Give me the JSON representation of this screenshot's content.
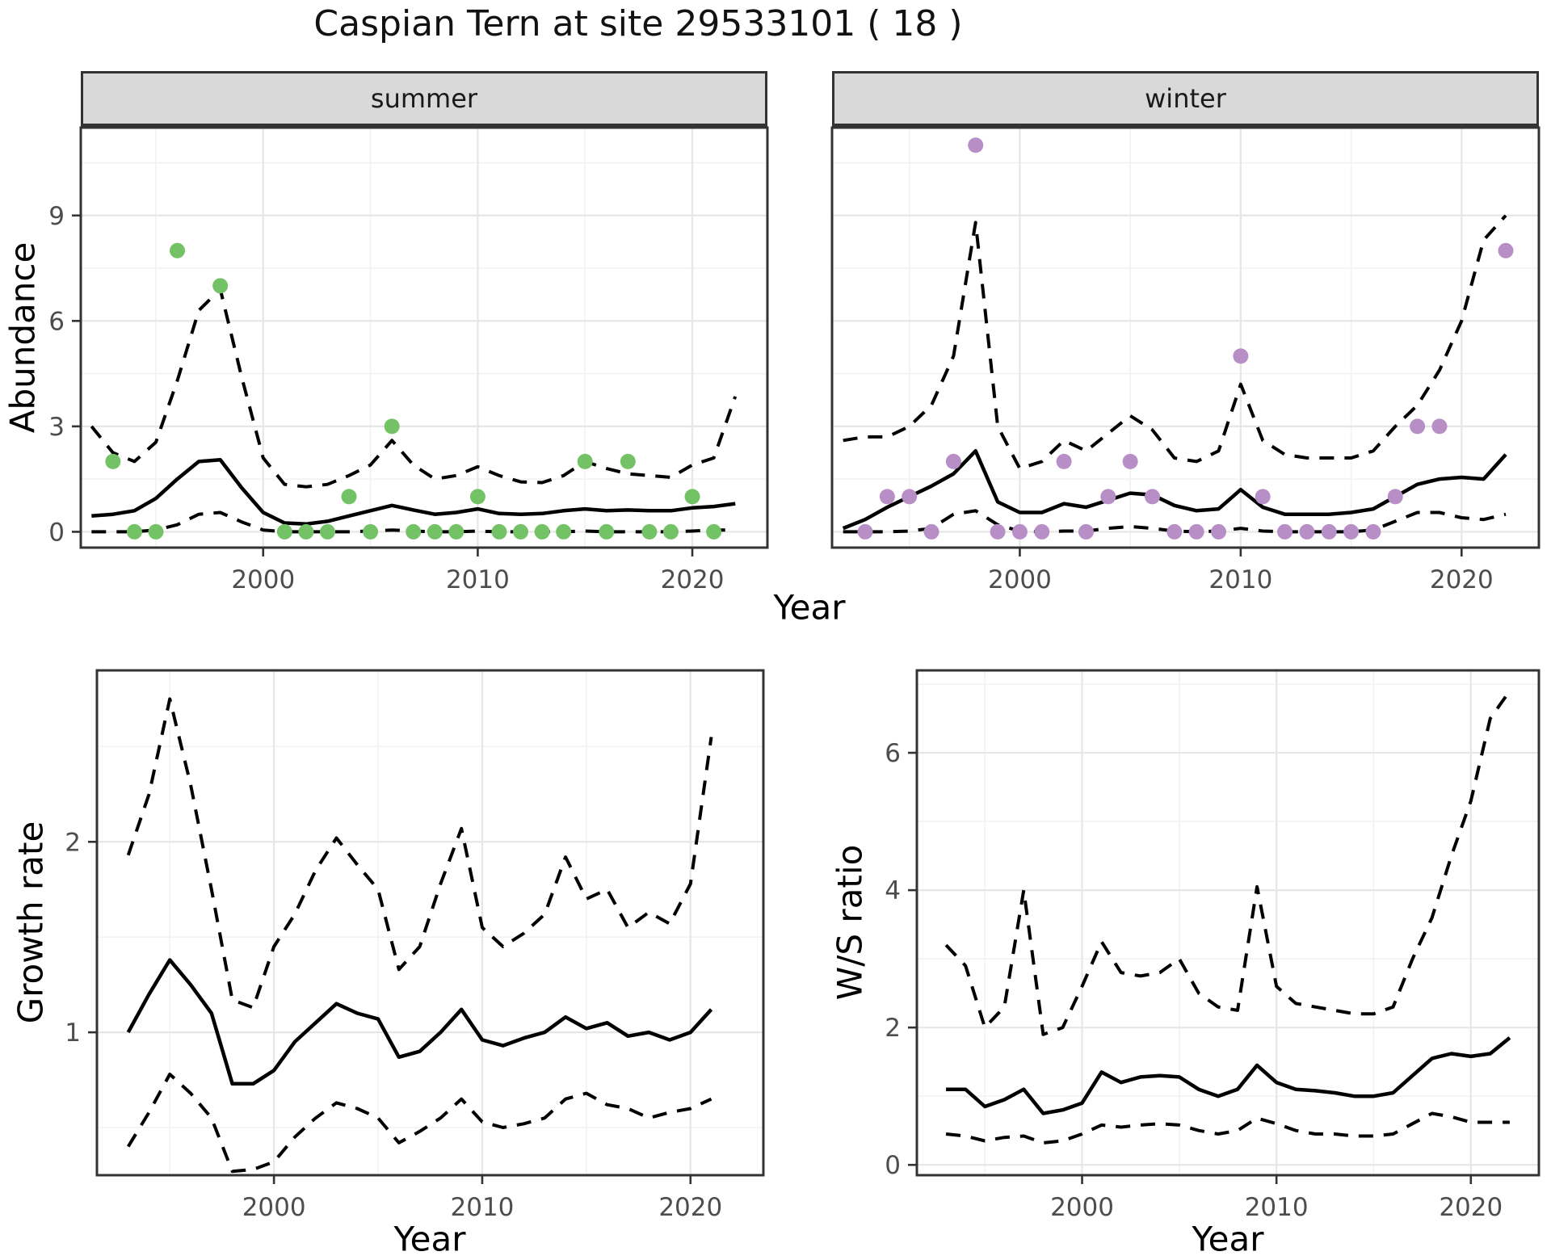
{
  "title": "Caspian Tern at site 29533101 ( 18 )",
  "facets": {
    "summer_label": "summer",
    "winter_label": "winter"
  },
  "axis_titles": {
    "abundance": "Abundance",
    "year_top": "Year",
    "growth": "Growth rate",
    "ws": "W/S ratio",
    "year_growth": "Year",
    "year_ws": "Year"
  },
  "colors": {
    "summer_point": "#74C266",
    "winter_point": "#B78FC6",
    "line": "#000000",
    "grid_major": "#E6E6E6",
    "grid_minor": "#F2F2F2",
    "strip_bg": "#D9D9D9",
    "panel_border": "#333333",
    "tick_color": "#333333",
    "tick_label": "#4D4D4D",
    "background": "#FFFFFF"
  },
  "chart_data": [
    {
      "id": "abundance-summer",
      "type": "line",
      "facet": "summer",
      "xlabel": "Year",
      "ylabel": "Abundance",
      "x_range": [
        1991.5,
        2023.5
      ],
      "y_range": [
        -0.45,
        11.5
      ],
      "x_ticks": [
        2000,
        2010,
        2020
      ],
      "y_ticks": [
        0,
        3,
        6,
        9
      ],
      "x_minor": [
        1995,
        2005,
        2015
      ],
      "y_minor": [
        1.5,
        4.5,
        7.5,
        10.5
      ],
      "points": {
        "color_key": "summer_point",
        "x": [
          1993,
          1994,
          1995,
          1996,
          1998,
          2001,
          2002,
          2003,
          2004,
          2005,
          2006,
          2007,
          2008,
          2009,
          2010,
          2011,
          2012,
          2013,
          2014,
          2015,
          2016,
          2017,
          2018,
          2019,
          2020,
          2021
        ],
        "y": [
          2,
          0,
          0,
          8,
          7,
          0,
          0,
          0,
          1,
          0,
          3,
          0,
          0,
          0,
          1,
          0,
          0,
          0,
          0,
          2,
          0,
          2,
          0,
          0,
          1,
          0
        ]
      },
      "series": [
        {
          "name": "median",
          "style": "solid",
          "x0": 1992,
          "y": [
            0.45,
            0.5,
            0.6,
            0.95,
            1.5,
            2.0,
            2.05,
            1.25,
            0.55,
            0.25,
            0.22,
            0.3,
            0.45,
            0.6,
            0.75,
            0.62,
            0.5,
            0.55,
            0.65,
            0.52,
            0.5,
            0.52,
            0.6,
            0.65,
            0.6,
            0.62,
            0.6,
            0.6,
            0.68,
            0.72,
            0.8
          ]
        },
        {
          "name": "upper_ci",
          "style": "dashed",
          "x0": 1992,
          "y": [
            3.0,
            2.25,
            2.0,
            2.55,
            4.3,
            6.3,
            6.9,
            4.4,
            2.1,
            1.35,
            1.28,
            1.35,
            1.6,
            1.9,
            2.6,
            1.9,
            1.5,
            1.6,
            1.85,
            1.6,
            1.42,
            1.4,
            1.6,
            2.0,
            1.8,
            1.65,
            1.6,
            1.55,
            1.9,
            2.1,
            3.85
          ]
        },
        {
          "name": "lower_ci",
          "style": "dashed",
          "x0": 1992,
          "y": [
            0,
            0,
            0,
            0.05,
            0.2,
            0.5,
            0.55,
            0.28,
            0.05,
            0,
            0,
            0,
            0,
            0.02,
            0.05,
            0.02,
            0,
            0,
            0.02,
            0,
            0,
            0,
            0,
            0.02,
            0,
            0,
            0,
            0,
            0.02,
            0.05,
            0.05
          ]
        }
      ]
    },
    {
      "id": "abundance-winter",
      "type": "line",
      "facet": "winter",
      "xlabel": "Year",
      "ylabel": "Abundance",
      "x_range": [
        1991.5,
        2023.5
      ],
      "y_range": [
        -0.45,
        11.5
      ],
      "x_ticks": [
        2000,
        2010,
        2020
      ],
      "y_ticks": [
        0,
        3,
        6,
        9
      ],
      "x_minor": [
        1995,
        2005,
        2015
      ],
      "y_minor": [
        1.5,
        4.5,
        7.5,
        10.5
      ],
      "points": {
        "color_key": "winter_point",
        "x": [
          1993,
          1994,
          1995,
          1996,
          1997,
          1998,
          1999,
          2000,
          2001,
          2002,
          2003,
          2004,
          2005,
          2006,
          2007,
          2008,
          2009,
          2010,
          2011,
          2012,
          2013,
          2014,
          2015,
          2016,
          2017,
          2018,
          2019,
          2022
        ],
        "y": [
          0,
          1,
          1,
          0,
          2,
          11,
          0,
          0,
          0,
          2,
          0,
          1,
          2,
          1,
          0,
          0,
          0,
          5,
          1,
          0,
          0,
          0,
          0,
          0,
          1,
          3,
          3,
          8
        ]
      },
      "series": [
        {
          "name": "median",
          "style": "solid",
          "x0": 1992,
          "y": [
            0.1,
            0.35,
            0.7,
            1.0,
            1.3,
            1.65,
            2.3,
            0.85,
            0.55,
            0.55,
            0.8,
            0.7,
            0.9,
            1.1,
            1.05,
            0.75,
            0.6,
            0.65,
            1.2,
            0.7,
            0.5,
            0.5,
            0.5,
            0.55,
            0.65,
            1.0,
            1.35,
            1.5,
            1.55,
            1.5,
            2.2
          ]
        },
        {
          "name": "upper_ci",
          "style": "dashed",
          "x0": 1992,
          "y": [
            2.6,
            2.7,
            2.7,
            3.0,
            3.6,
            5.0,
            8.8,
            3.0,
            1.8,
            2.0,
            2.6,
            2.3,
            2.8,
            3.3,
            2.9,
            2.1,
            2.0,
            2.3,
            4.2,
            2.6,
            2.2,
            2.1,
            2.1,
            2.1,
            2.3,
            3.0,
            3.6,
            4.6,
            6.0,
            8.3,
            9.0
          ]
        },
        {
          "name": "lower_ci",
          "style": "dashed",
          "x0": 1992,
          "y": [
            0,
            0,
            0,
            0.02,
            0.1,
            0.5,
            0.6,
            0.2,
            0.02,
            0,
            0.02,
            0.02,
            0.1,
            0.15,
            0.1,
            0.02,
            0,
            0.02,
            0.1,
            0.02,
            0,
            0,
            0,
            0,
            0.05,
            0.3,
            0.55,
            0.55,
            0.4,
            0.35,
            0.5
          ]
        }
      ]
    },
    {
      "id": "growth-rate",
      "type": "line",
      "facet": "",
      "xlabel": "Year",
      "ylabel": "Growth rate",
      "x_range": [
        1991.5,
        2023.5
      ],
      "y_range": [
        0.25,
        2.9
      ],
      "x_ticks": [
        2000,
        2010,
        2020
      ],
      "y_ticks": [
        1,
        2
      ],
      "x_minor": [
        1995,
        2005,
        2015
      ],
      "y_minor": [
        0.5,
        1.5,
        2.5
      ],
      "points": null,
      "series": [
        {
          "name": "median",
          "style": "solid",
          "x0": 1993,
          "y": [
            1.0,
            1.2,
            1.38,
            1.25,
            1.1,
            0.73,
            0.73,
            0.8,
            0.95,
            1.05,
            1.15,
            1.1,
            1.07,
            0.87,
            0.9,
            1.0,
            1.12,
            0.96,
            0.93,
            0.97,
            1.0,
            1.08,
            1.02,
            1.05,
            0.98,
            1.0,
            0.96,
            1.0,
            1.12
          ]
        },
        {
          "name": "upper_ci",
          "style": "dashed",
          "x0": 1993,
          "y": [
            1.93,
            2.25,
            2.75,
            2.3,
            1.75,
            1.17,
            1.13,
            1.45,
            1.62,
            1.85,
            2.02,
            1.88,
            1.75,
            1.33,
            1.45,
            1.78,
            2.07,
            1.55,
            1.45,
            1.52,
            1.62,
            1.92,
            1.7,
            1.75,
            1.55,
            1.63,
            1.57,
            1.78,
            2.55
          ]
        },
        {
          "name": "lower_ci",
          "style": "dashed",
          "x0": 1993,
          "y": [
            0.4,
            0.58,
            0.78,
            0.68,
            0.55,
            0.27,
            0.28,
            0.32,
            0.45,
            0.55,
            0.63,
            0.6,
            0.55,
            0.42,
            0.48,
            0.55,
            0.65,
            0.53,
            0.5,
            0.52,
            0.55,
            0.65,
            0.68,
            0.62,
            0.6,
            0.55,
            0.58,
            0.6,
            0.65
          ]
        }
      ]
    },
    {
      "id": "ws-ratio",
      "type": "line",
      "facet": "",
      "xlabel": "Year",
      "ylabel": "W/S ratio",
      "x_range": [
        1991.5,
        2023.5
      ],
      "y_range": [
        -0.15,
        7.2
      ],
      "x_ticks": [
        2000,
        2010,
        2020
      ],
      "y_ticks": [
        0,
        2,
        4,
        6
      ],
      "x_minor": [
        1995,
        2005,
        2015
      ],
      "y_minor": [
        1,
        3,
        5,
        7
      ],
      "points": null,
      "series": [
        {
          "name": "median",
          "style": "solid",
          "x0": 1993,
          "y": [
            1.1,
            1.1,
            0.85,
            0.95,
            1.1,
            0.75,
            0.8,
            0.9,
            1.35,
            1.2,
            1.28,
            1.3,
            1.28,
            1.1,
            1.0,
            1.1,
            1.45,
            1.2,
            1.1,
            1.08,
            1.05,
            1.0,
            1.0,
            1.05,
            1.3,
            1.55,
            1.62,
            1.58,
            1.62,
            1.85
          ]
        },
        {
          "name": "upper_ci",
          "style": "dashed",
          "x0": 1993,
          "y": [
            3.2,
            2.9,
            2.0,
            2.3,
            4.0,
            1.9,
            2.0,
            2.6,
            3.25,
            2.8,
            2.75,
            2.8,
            3.0,
            2.5,
            2.3,
            2.25,
            4.05,
            2.6,
            2.35,
            2.3,
            2.25,
            2.2,
            2.2,
            2.3,
            3.0,
            3.6,
            4.5,
            5.3,
            6.5,
            6.9
          ]
        },
        {
          "name": "lower_ci",
          "style": "dashed",
          "x0": 1993,
          "y": [
            0.45,
            0.42,
            0.35,
            0.4,
            0.42,
            0.32,
            0.35,
            0.45,
            0.58,
            0.55,
            0.58,
            0.6,
            0.58,
            0.5,
            0.45,
            0.5,
            0.68,
            0.6,
            0.5,
            0.45,
            0.45,
            0.42,
            0.42,
            0.45,
            0.6,
            0.75,
            0.7,
            0.62,
            0.62,
            0.62
          ]
        }
      ]
    }
  ]
}
